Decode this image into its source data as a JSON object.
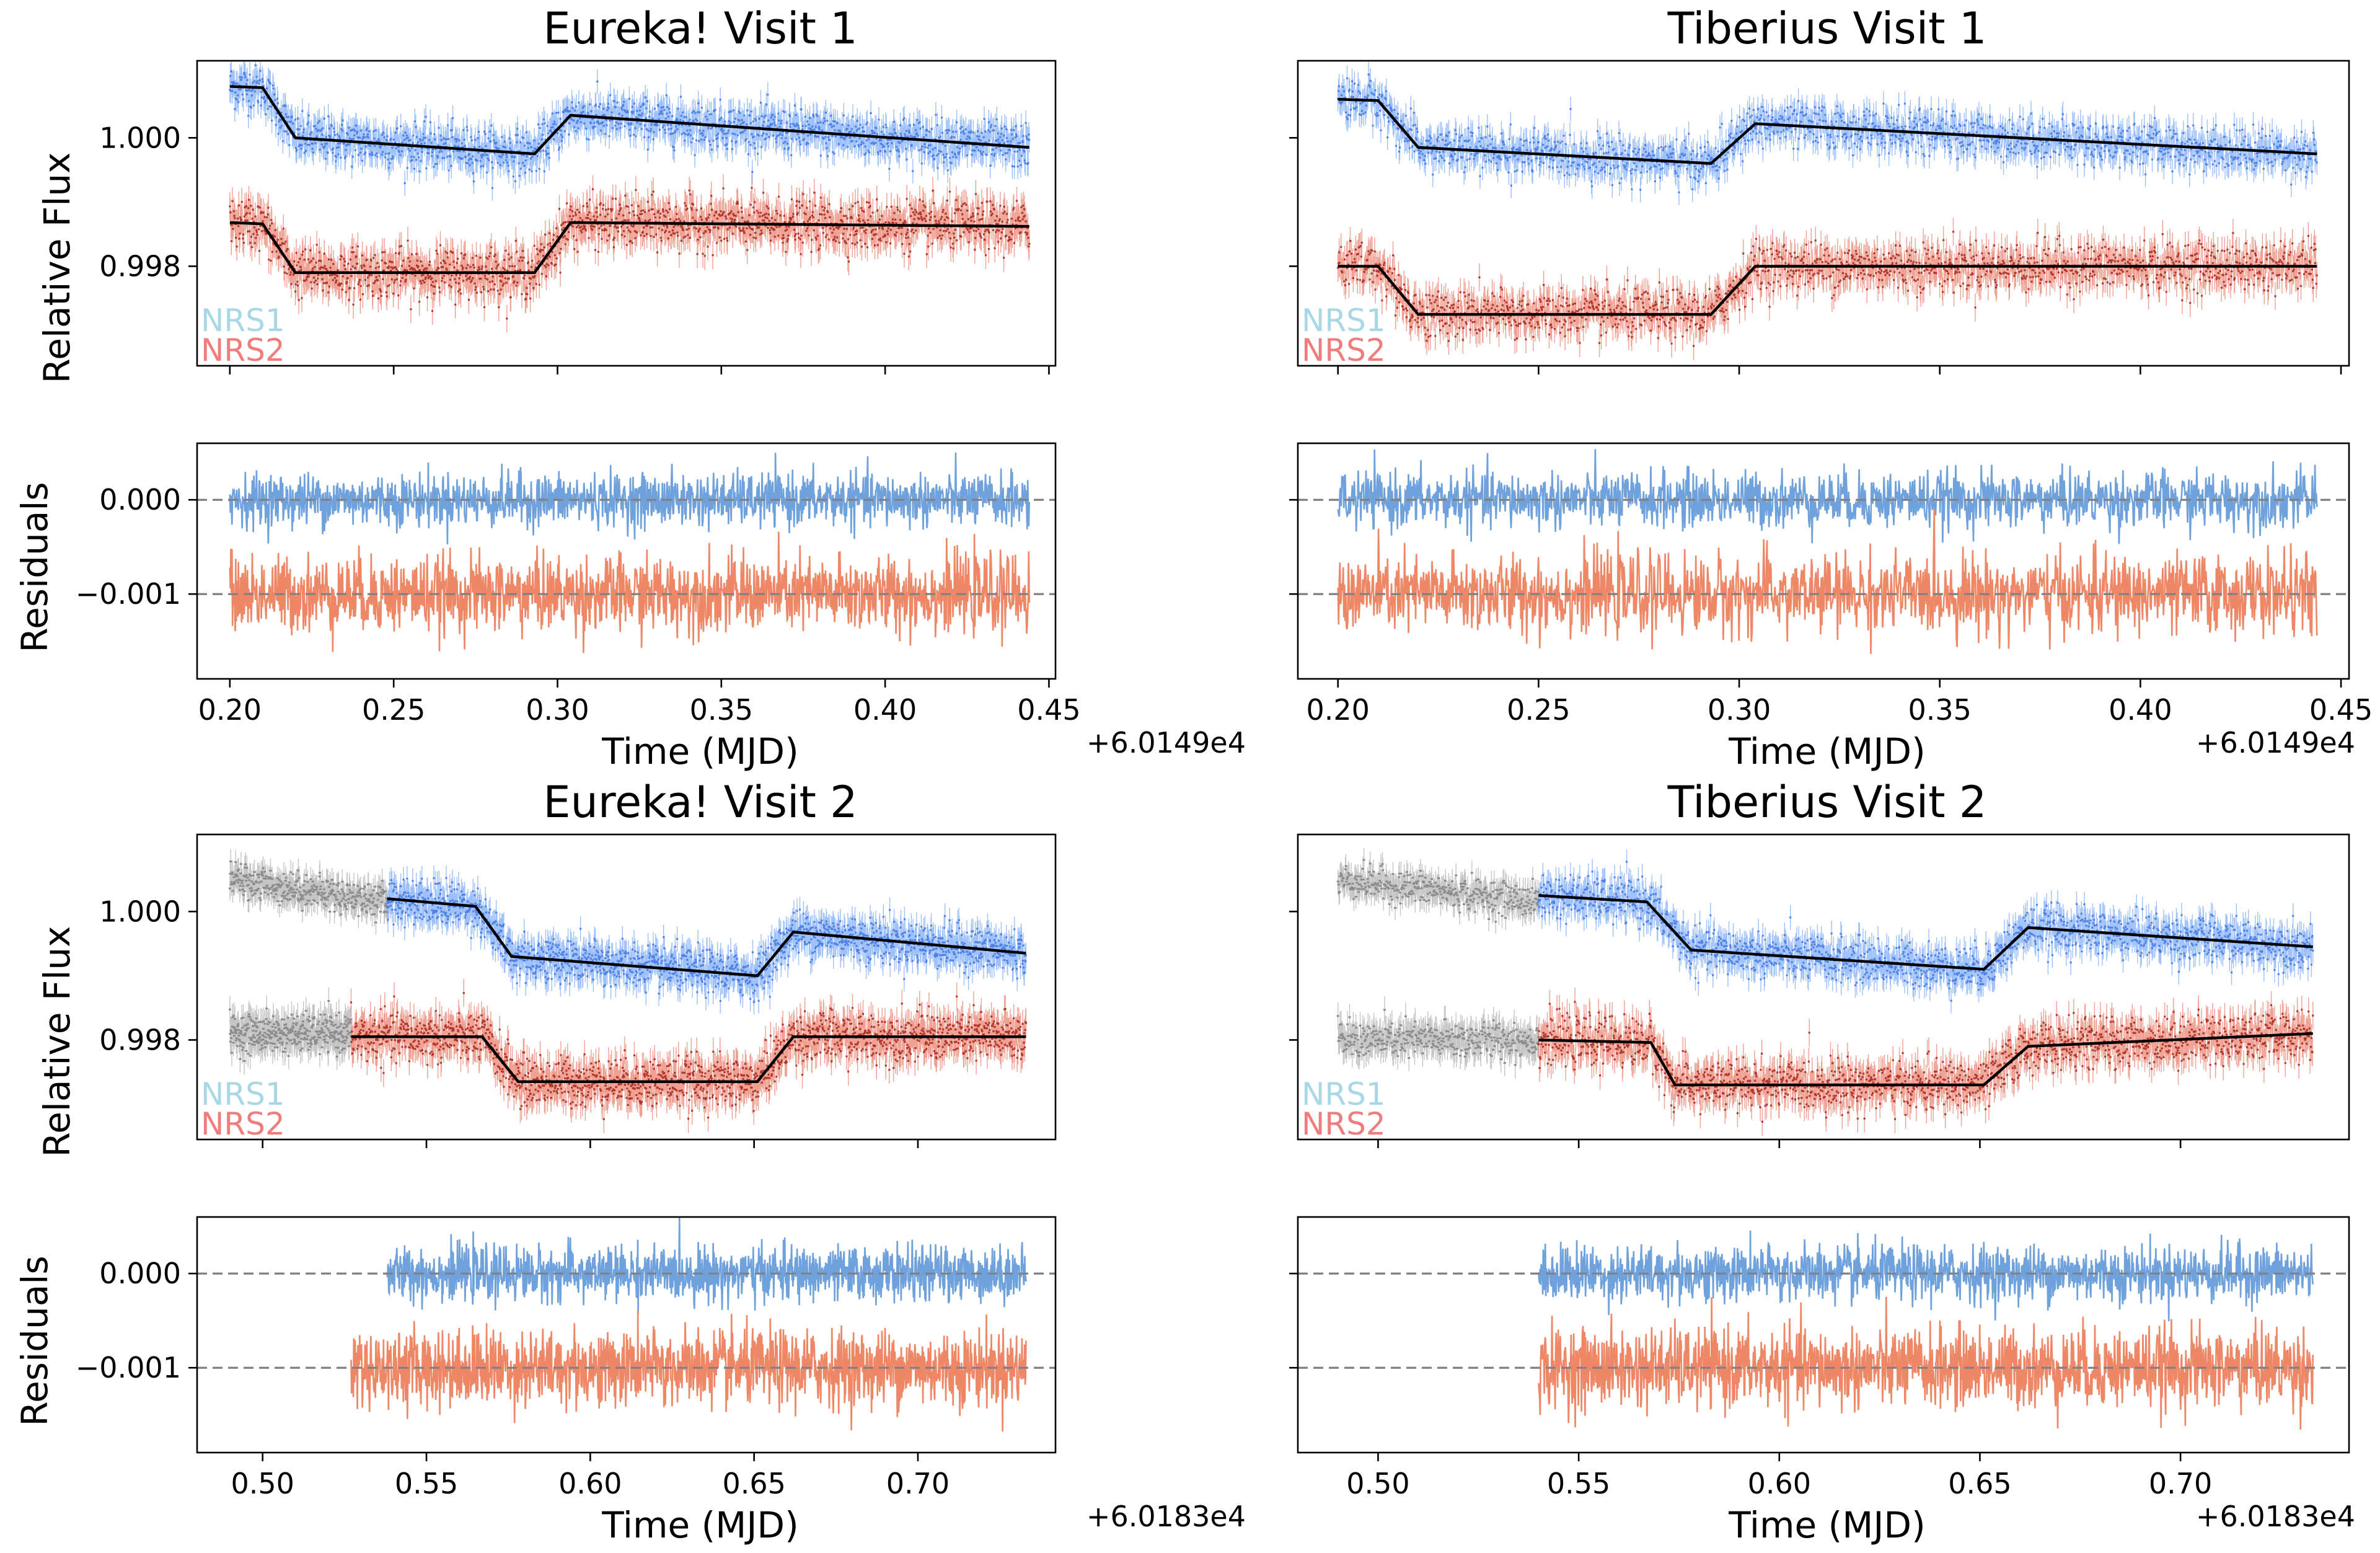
{
  "figure": {
    "background": "#ffffff"
  },
  "colors": {
    "nrs1_points": "#3b6fe0",
    "nrs1_errorbar": "#4f8ef5",
    "nrs2_points": "#a01c10",
    "nrs2_errorbar": "#e2533c",
    "excluded": "#8c8c8c",
    "model": "#000000",
    "res_nrs1": "#6fa2dc",
    "res_nrs2": "#ee8766",
    "zero_line": "#808080",
    "legend_nrs1": "#a8d8e6",
    "legend_nrs2": "#f07c7c"
  },
  "chart_data": [
    {
      "id": "eureka_v1",
      "type": "line",
      "title": "Eureka! Visit 1",
      "ylabel": "Relative Flux",
      "xlim": [
        0.19,
        0.452
      ],
      "ylim": [
        0.99645,
        1.0012
      ],
      "yticks": [
        1.0,
        0.998
      ],
      "ytick_labels": [
        "1.000",
        "0.998"
      ],
      "legend": [
        "NRS1",
        "NRS2"
      ],
      "series": [
        {
          "name": "NRS1",
          "x_range": [
            0.2,
            0.444
          ],
          "model": {
            "x": [
              0.2,
              0.21,
              0.22,
              0.293,
              0.304,
              0.444
            ],
            "y": [
              1.0008,
              1.00078,
              1.0,
              0.99975,
              1.00035,
              0.99985
            ]
          },
          "scatter_sigma": 0.00017
        },
        {
          "name": "NRS2",
          "x_range": [
            0.2,
            0.444
          ],
          "model": {
            "x": [
              0.2,
              0.21,
              0.22,
              0.293,
              0.304,
              0.444
            ],
            "y": [
              0.99868,
              0.99866,
              0.9979,
              0.9979,
              0.99868,
              0.99862
            ]
          },
          "scatter_sigma": 0.00019
        }
      ]
    },
    {
      "id": "eureka_v1_res",
      "type": "line",
      "ylabel": "Residuals",
      "xlabel": "Time (MJD)",
      "x_offset": "+6.0149e4",
      "xlim": [
        0.19,
        0.452
      ],
      "ylim": [
        -0.0019,
        0.0006
      ],
      "xticks": [
        0.2,
        0.25,
        0.3,
        0.35,
        0.4,
        0.45
      ],
      "xtick_labels": [
        "0.20",
        "0.25",
        "0.30",
        "0.35",
        "0.40",
        "0.45"
      ],
      "yticks": [
        0.0,
        -0.001
      ],
      "ytick_labels": [
        "0.000",
        "−0.001"
      ],
      "series": [
        {
          "name": "NRS1",
          "x_range": [
            0.2,
            0.444
          ],
          "center": 0.0,
          "sigma": 0.00014
        },
        {
          "name": "NRS2",
          "x_range": [
            0.2,
            0.444
          ],
          "center": -0.001,
          "sigma": 0.0002
        }
      ]
    },
    {
      "id": "tiberius_v1",
      "type": "line",
      "title": "Tiberius Visit 1",
      "xlim": [
        0.19,
        0.452
      ],
      "ylim": [
        0.99645,
        1.0012
      ],
      "yticks": [
        1.0,
        0.998
      ],
      "legend": [
        "NRS1",
        "NRS2"
      ],
      "series": [
        {
          "name": "NRS1",
          "x_range": [
            0.2,
            0.444
          ],
          "model": {
            "x": [
              0.2,
              0.21,
              0.22,
              0.293,
              0.304,
              0.444
            ],
            "y": [
              1.0006,
              1.00058,
              0.99985,
              0.9996,
              1.00022,
              0.99975
            ]
          },
          "scatter_sigma": 0.00017
        },
        {
          "name": "NRS2",
          "x_range": [
            0.2,
            0.444
          ],
          "model": {
            "x": [
              0.2,
              0.21,
              0.22,
              0.293,
              0.304,
              0.444
            ],
            "y": [
              0.998,
              0.998,
              0.99725,
              0.99725,
              0.998,
              0.998
            ]
          },
          "scatter_sigma": 0.00019
        }
      ]
    },
    {
      "id": "tiberius_v1_res",
      "type": "line",
      "xlabel": "Time (MJD)",
      "x_offset": "+6.0149e4",
      "xlim": [
        0.19,
        0.452
      ],
      "ylim": [
        -0.0019,
        0.0006
      ],
      "xticks": [
        0.2,
        0.25,
        0.3,
        0.35,
        0.4,
        0.45
      ],
      "xtick_labels": [
        "0.20",
        "0.25",
        "0.30",
        "0.35",
        "0.40",
        "0.45"
      ],
      "yticks": [
        0.0,
        -0.001
      ],
      "series": [
        {
          "name": "NRS1",
          "x_range": [
            0.2,
            0.444
          ],
          "center": 0.0,
          "sigma": 0.00015
        },
        {
          "name": "NRS2",
          "x_range": [
            0.2,
            0.444
          ],
          "center": -0.001,
          "sigma": 0.00021
        }
      ]
    },
    {
      "id": "eureka_v2",
      "type": "line",
      "title": "Eureka! Visit 2",
      "ylabel": "Relative Flux",
      "xlim": [
        0.48,
        0.742
      ],
      "ylim": [
        0.99645,
        1.0012
      ],
      "yticks": [
        1.0,
        0.998
      ],
      "ytick_labels": [
        "1.000",
        "0.998"
      ],
      "legend": [
        "NRS1",
        "NRS2"
      ],
      "series": [
        {
          "name": "NRS1",
          "x_range": [
            0.538,
            0.733
          ],
          "excluded_range": [
            0.49,
            0.538
          ],
          "excluded_level": 1.0005,
          "model": {
            "x": [
              0.538,
              0.565,
              0.576,
              0.651,
              0.662,
              0.733
            ],
            "y": [
              1.0002,
              1.00008,
              0.9993,
              0.999,
              0.99968,
              0.99935
            ]
          },
          "scatter_sigma": 0.00017
        },
        {
          "name": "NRS2",
          "x_range": [
            0.527,
            0.733
          ],
          "excluded_range": [
            0.49,
            0.527
          ],
          "excluded_level": 0.9981,
          "model": {
            "x": [
              0.527,
              0.567,
              0.578,
              0.651,
              0.662,
              0.733
            ],
            "y": [
              0.99805,
              0.99805,
              0.99735,
              0.99735,
              0.99805,
              0.99805
            ]
          },
          "scatter_sigma": 0.00019
        }
      ]
    },
    {
      "id": "eureka_v2_res",
      "type": "line",
      "ylabel": "Residuals",
      "xlabel": "Time (MJD)",
      "x_offset": "+6.0183e4",
      "xlim": [
        0.48,
        0.742
      ],
      "ylim": [
        -0.0019,
        0.0006
      ],
      "xticks": [
        0.5,
        0.55,
        0.6,
        0.65,
        0.7
      ],
      "xtick_labels": [
        "0.50",
        "0.55",
        "0.60",
        "0.65",
        "0.70"
      ],
      "yticks": [
        0.0,
        -0.001
      ],
      "ytick_labels": [
        "0.000",
        "−0.001"
      ],
      "series": [
        {
          "name": "NRS1",
          "x_range": [
            0.538,
            0.733
          ],
          "center": 0.0,
          "sigma": 0.00014
        },
        {
          "name": "NRS2",
          "x_range": [
            0.527,
            0.733
          ],
          "center": -0.001,
          "sigma": 0.0002
        }
      ]
    },
    {
      "id": "tiberius_v2",
      "type": "line",
      "title": "Tiberius Visit 2",
      "xlim": [
        0.48,
        0.742
      ],
      "ylim": [
        0.99645,
        1.0012
      ],
      "yticks": [
        1.0,
        0.998
      ],
      "legend": [
        "NRS1",
        "NRS2"
      ],
      "series": [
        {
          "name": "NRS1",
          "x_range": [
            0.54,
            0.733
          ],
          "excluded_range": [
            0.49,
            0.54
          ],
          "excluded_level": 1.0005,
          "model": {
            "x": [
              0.54,
              0.567,
              0.578,
              0.651,
              0.662,
              0.733
            ],
            "y": [
              1.00025,
              1.00015,
              0.9994,
              0.9991,
              0.99975,
              0.99945
            ]
          },
          "scatter_sigma": 0.00017
        },
        {
          "name": "NRS2",
          "x_range": [
            0.54,
            0.733
          ],
          "excluded_range": [
            0.49,
            0.54
          ],
          "excluded_level": 0.998,
          "model": {
            "x": [
              0.54,
              0.568,
              0.574,
              0.651,
              0.662,
              0.733
            ],
            "y": [
              0.998,
              0.99796,
              0.9973,
              0.9973,
              0.9979,
              0.9981
            ]
          },
          "scatter_sigma": 0.00019
        }
      ]
    },
    {
      "id": "tiberius_v2_res",
      "type": "line",
      "xlabel": "Time (MJD)",
      "x_offset": "+6.0183e4",
      "xlim": [
        0.48,
        0.742
      ],
      "ylim": [
        -0.0019,
        0.0006
      ],
      "xticks": [
        0.5,
        0.55,
        0.6,
        0.65,
        0.7
      ],
      "xtick_labels": [
        "0.50",
        "0.55",
        "0.60",
        "0.65",
        "0.70"
      ],
      "yticks": [
        0.0,
        -0.001
      ],
      "series": [
        {
          "name": "NRS1",
          "x_range": [
            0.54,
            0.733
          ],
          "center": 0.0,
          "sigma": 0.00015
        },
        {
          "name": "NRS2",
          "x_range": [
            0.54,
            0.733
          ],
          "center": -0.001,
          "sigma": 0.00021
        }
      ]
    }
  ]
}
